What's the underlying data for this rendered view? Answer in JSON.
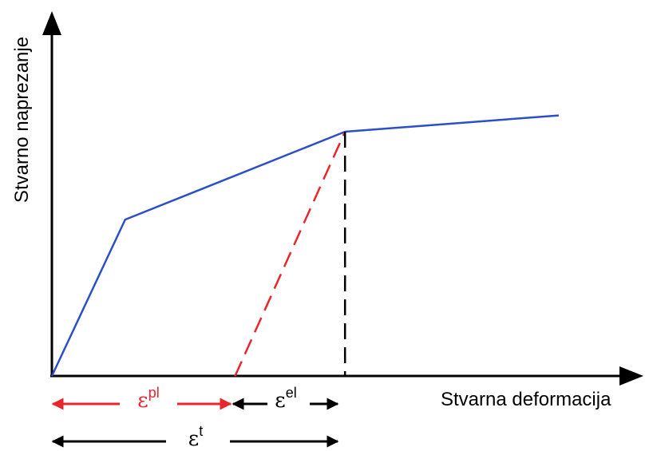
{
  "axes": {
    "y_title": "Stvarno naprezanje",
    "x_title": "Stvarna deformacija"
  },
  "labels": {
    "plastic": {
      "symbol": "ε",
      "sup": "pl"
    },
    "elastic": {
      "symbol": "ε",
      "sup": "el"
    },
    "total": {
      "symbol": "ε",
      "sup": "t"
    }
  },
  "colors": {
    "curve": "#2b4fc7",
    "plastic": "#e8262b",
    "axes": "#000000",
    "guide": "#000000"
  },
  "chart_data": {
    "type": "line",
    "series": [
      {
        "x": [
          0,
          0.12,
          0.48,
          0.83
        ],
        "y": [
          0,
          0.48,
          0.75,
          0.8
        ]
      }
    ],
    "unloading_line_dashed": {
      "x": [
        0.3,
        0.48
      ],
      "y": [
        0,
        0.75
      ]
    },
    "strain_decomposition": {
      "plastic_strain": 0.3,
      "elastic_strain": 0.18,
      "total_strain": 0.48
    },
    "xlim": [
      0,
      1
    ],
    "ylim": [
      0,
      1.12
    ],
    "grid": false
  }
}
